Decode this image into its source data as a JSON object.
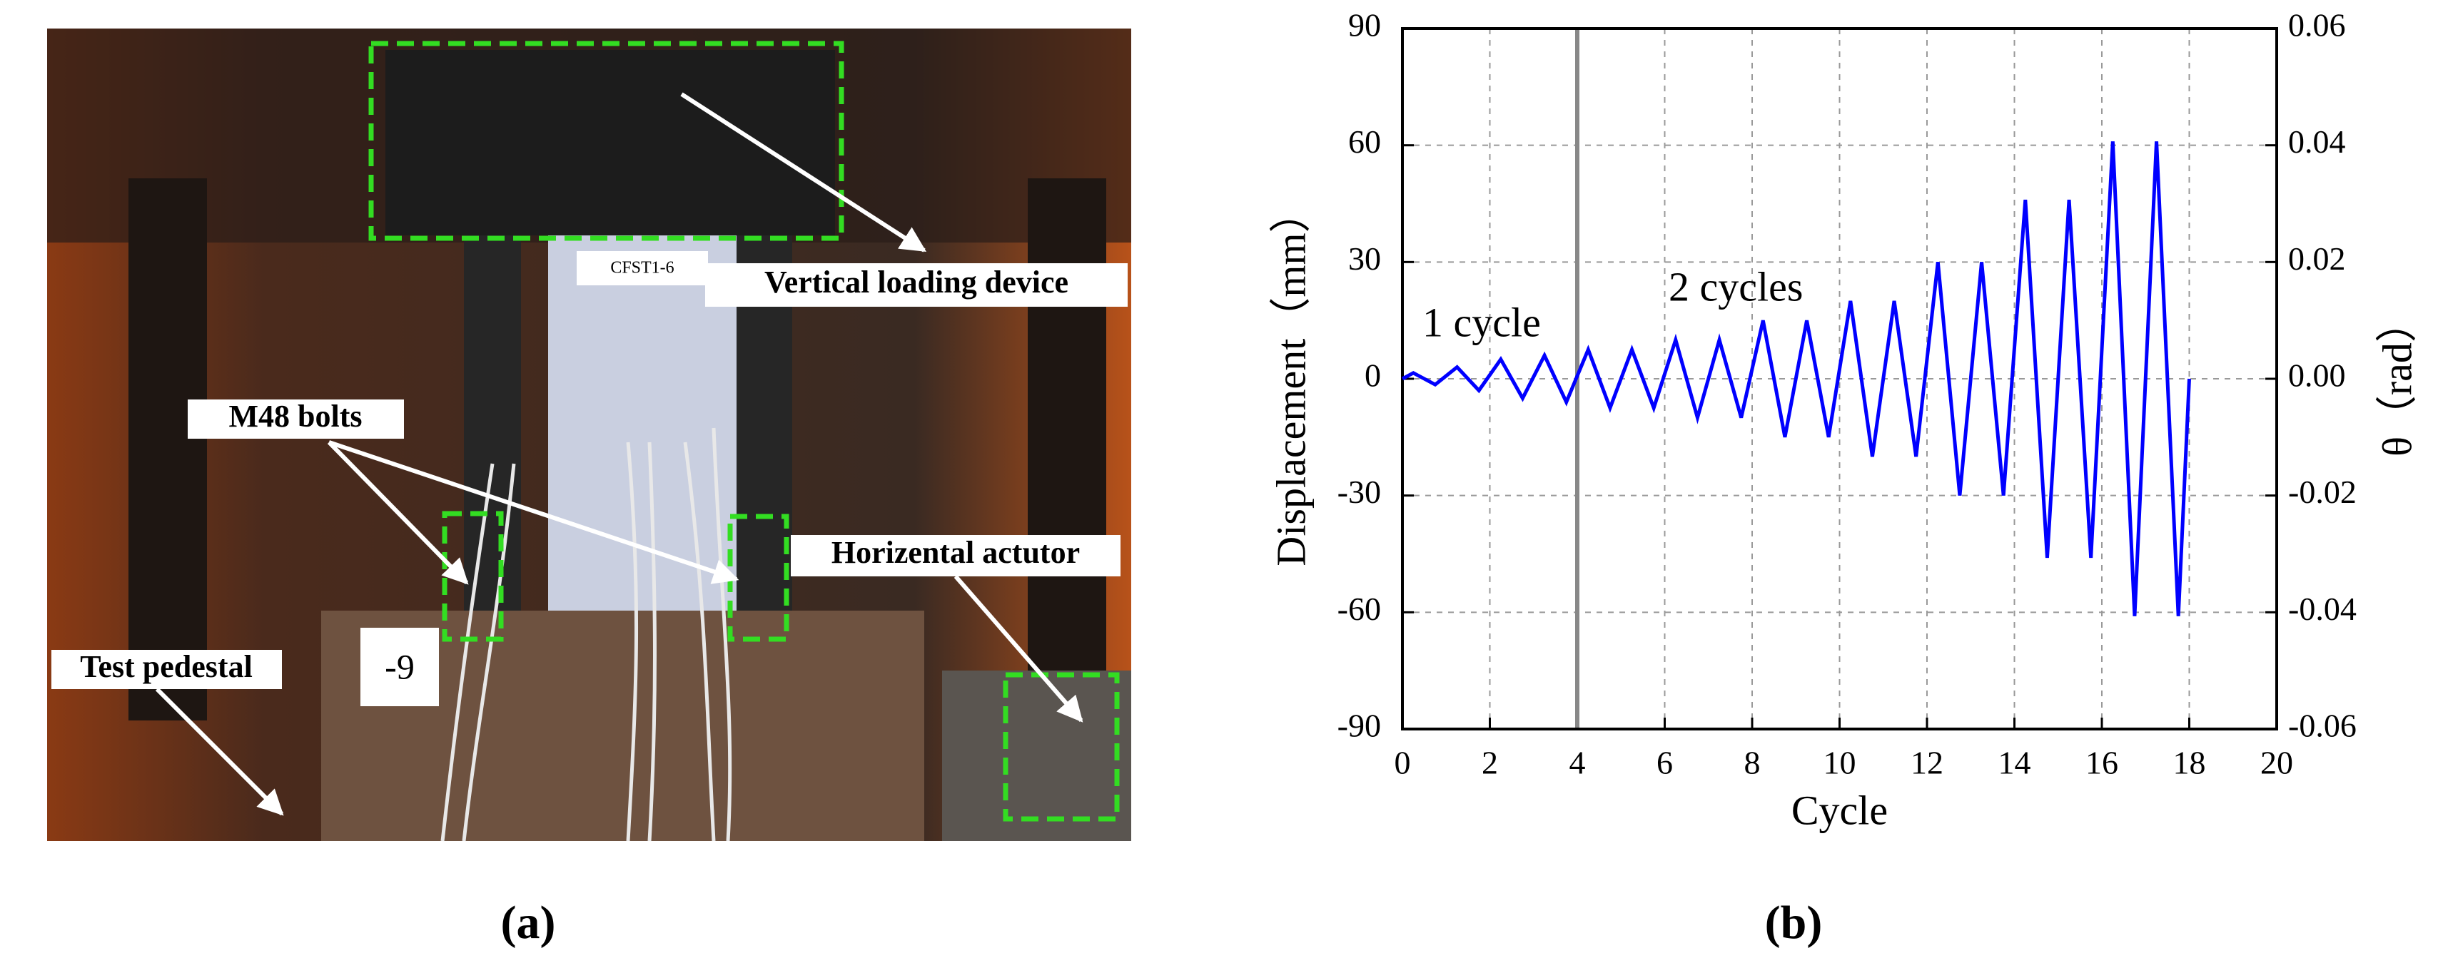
{
  "chart_data": {
    "type": "line",
    "xlabel": "Cycle",
    "ylabel": "Displacement（mm）",
    "y2label": "θ（rad）",
    "annotations": [
      "1 cycle",
      "2 cycles"
    ],
    "x": [
      0,
      0.25,
      0.75,
      1.25,
      1.75,
      2.25,
      2.75,
      3.25,
      3.75,
      4.25,
      4.75,
      5.25,
      5.75,
      6.25,
      6.75,
      7.25,
      7.75,
      8.25,
      8.75,
      9.25,
      9.75,
      10.25,
      10.75,
      11.25,
      11.75,
      12.25,
      12.75,
      13.25,
      13.75,
      14.25,
      14.75,
      15.25,
      15.75,
      16.25,
      16.75,
      17.25,
      17.75,
      18
    ],
    "series": [
      {
        "color": "#0000ff",
        "values": [
          0,
          1.5,
          -1.5,
          3,
          -3,
          5,
          -5,
          6,
          -6,
          7.5,
          -7.5,
          7.5,
          -7.5,
          10,
          -10,
          10,
          -10,
          15,
          -15,
          15,
          -15,
          20,
          -20,
          20,
          -20,
          30,
          -30,
          30,
          -30,
          46,
          -46,
          46,
          -46,
          61,
          -61,
          61,
          -61,
          0
        ]
      }
    ],
    "vlines": [
      4
    ],
    "xlim": [
      0,
      20
    ],
    "xticks": [
      0,
      2,
      4,
      6,
      8,
      10,
      12,
      14,
      16,
      18,
      20
    ],
    "ylim": [
      -90,
      90
    ],
    "yticks": [
      -90,
      -60,
      -30,
      0,
      30,
      60,
      90
    ],
    "y2lim": [
      -0.06,
      0.06
    ],
    "y2ticks": [
      -0.06,
      -0.04,
      -0.02,
      {
        "value": 0,
        "label": "0.00"
      },
      0.02,
      0.04,
      0.06
    ],
    "grid": true
  },
  "photo": {
    "labels": [
      "Vertical loading device",
      "M48 bolts",
      "Horizental actutor",
      "Test pedestal"
    ],
    "signs": [
      "CFST1-6",
      "-9"
    ]
  },
  "panel_labels": [
    "(a)",
    "(b)"
  ]
}
